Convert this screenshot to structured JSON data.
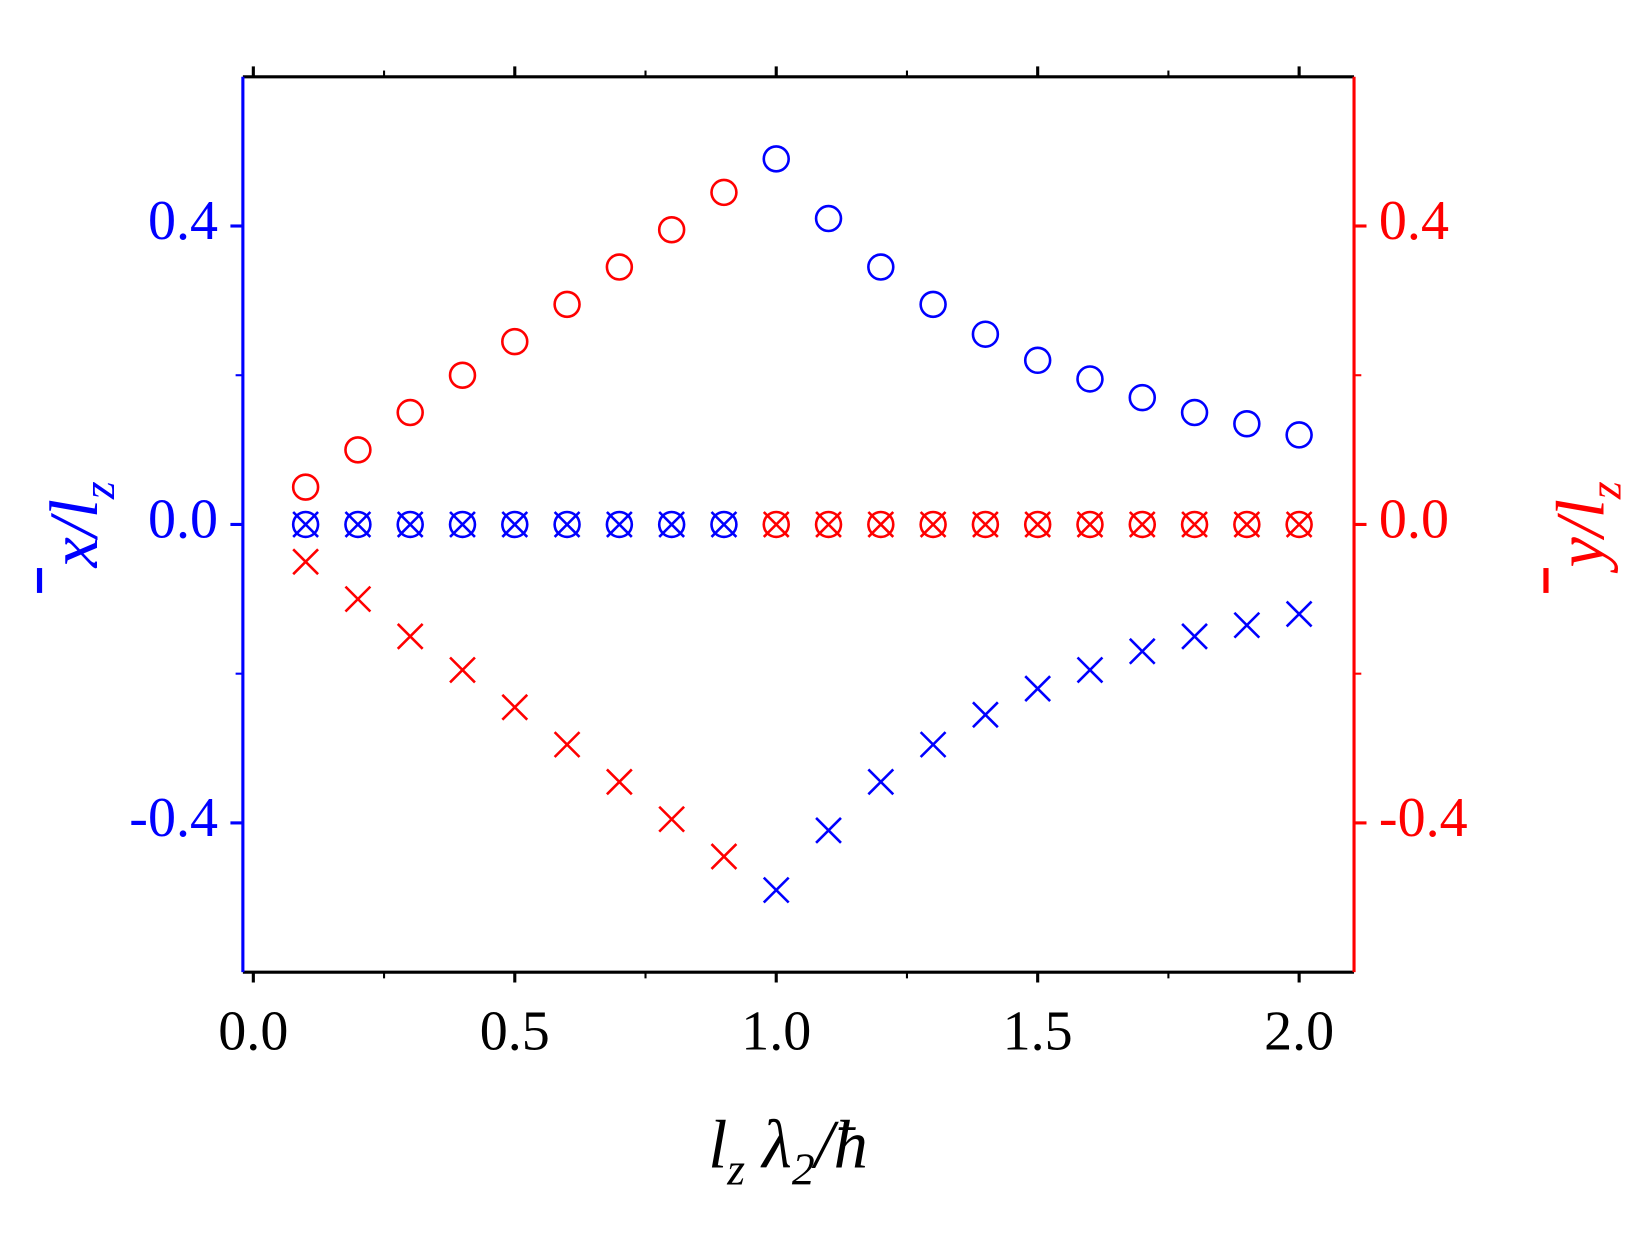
{
  "chart_data": {
    "type": "scatter",
    "xlabel": {
      "parts": [
        "l",
        "z",
        " λ",
        "2",
        "/ħ"
      ]
    },
    "ylabel": {
      "main": "x/l",
      "sub": "z"
    },
    "y2label": {
      "main": "y/l",
      "sub": "z"
    },
    "x": [
      0.1,
      0.2,
      0.3,
      0.4,
      0.5,
      0.6,
      0.7,
      0.8,
      0.9,
      1.0,
      1.1,
      1.2,
      1.3,
      1.4,
      1.5,
      1.6,
      1.7,
      1.8,
      1.9,
      2.0
    ],
    "xlim": [
      -0.02,
      2.105
    ],
    "xticks": [
      {
        "value": 0,
        "label": "0.0"
      },
      0.5,
      {
        "value": 1,
        "label": "1.0"
      },
      1.5,
      {
        "value": 2,
        "label": "2.0"
      }
    ],
    "ylim": [
      -0.6,
      0.6
    ],
    "yticks": [
      -0.4,
      {
        "value": 0,
        "label": "0.0"
      },
      0.4
    ],
    "y2lim": [
      -0.6,
      0.6
    ],
    "y2ticks": [
      -0.4,
      {
        "value": 0,
        "label": "0.0"
      },
      0.4
    ],
    "ycolor": "#0000ff",
    "y2color": "#ff0000",
    "series": [
      {
        "color": "#0000ff",
        "marker": "circle",
        "axis": "y",
        "values": [
          0,
          0,
          0,
          0,
          0,
          0,
          0,
          0,
          0,
          0.49,
          0.41,
          0.345,
          0.295,
          0.255,
          0.22,
          0.195,
          0.17,
          0.15,
          0.135,
          0.12
        ]
      },
      {
        "color": "#0000ff",
        "marker": "cross",
        "axis": "y",
        "values": [
          0,
          0,
          0,
          0,
          0,
          0,
          0,
          0,
          0,
          -0.49,
          -0.41,
          -0.345,
          -0.295,
          -0.255,
          -0.22,
          -0.195,
          -0.17,
          -0.15,
          -0.135,
          -0.12
        ]
      },
      {
        "color": "#ff0000",
        "marker": "circle",
        "axis": "y2",
        "values": [
          0.05,
          0.1,
          0.15,
          0.2,
          0.245,
          0.295,
          0.345,
          0.395,
          0.445,
          0,
          0,
          0,
          0,
          0,
          0,
          0,
          0,
          0,
          0,
          0
        ]
      },
      {
        "color": "#ff0000",
        "marker": "cross",
        "axis": "y2",
        "values": [
          -0.05,
          -0.1,
          -0.15,
          -0.195,
          -0.245,
          -0.295,
          -0.345,
          -0.395,
          -0.445,
          0,
          0,
          0,
          0,
          0,
          0,
          0,
          0,
          0,
          0,
          0
        ]
      }
    ]
  }
}
